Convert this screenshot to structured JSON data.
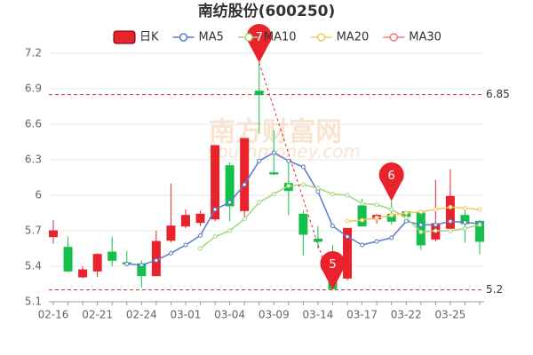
{
  "chart_data": {
    "type": "candlestick",
    "title": "南纺股份(600250)",
    "watermark": "南方财富网",
    "watermark_sub": "southmoney.com",
    "categories": [
      "02-16",
      null,
      null,
      "02-21",
      null,
      null,
      "02-24",
      null,
      null,
      "03-01",
      null,
      null,
      "03-04",
      null,
      null,
      "03-09",
      null,
      null,
      "03-14",
      null,
      null,
      "03-17",
      null,
      null,
      "03-22",
      null,
      null,
      "03-25",
      null,
      null
    ],
    "series": [
      {
        "name": "日K",
        "color": "#e8232b",
        "up_color": "#e8232b",
        "down_color": "#14c04b",
        "open": [
          5.65,
          5.56,
          5.31,
          5.36,
          5.52,
          5.43,
          5.42,
          5.32,
          5.62,
          5.74,
          5.77,
          5.8,
          6.25,
          5.87,
          6.88,
          6.19,
          6.1,
          5.84,
          5.63,
          5.32,
          5.3,
          5.91,
          5.8,
          5.84,
          5.86,
          5.85,
          5.63,
          5.72,
          5.83,
          5.78
        ],
        "close": [
          5.7,
          5.36,
          5.37,
          5.5,
          5.45,
          5.42,
          5.32,
          5.61,
          5.74,
          5.83,
          5.84,
          6.42,
          5.91,
          6.48,
          6.85,
          6.18,
          6.04,
          5.67,
          5.61,
          5.21,
          5.72,
          5.74,
          5.83,
          5.78,
          5.82,
          5.58,
          5.76,
          5.99,
          5.76,
          5.61
        ],
        "high": [
          5.79,
          5.65,
          5.4,
          5.51,
          5.65,
          5.53,
          5.45,
          5.7,
          6.1,
          5.88,
          5.87,
          6.42,
          6.28,
          6.48,
          7.12,
          6.55,
          6.3,
          5.87,
          5.74,
          5.58,
          5.72,
          5.97,
          5.84,
          5.95,
          5.87,
          5.86,
          6.13,
          6.22,
          5.89,
          5.79
        ],
        "low": [
          5.59,
          5.35,
          5.3,
          5.31,
          5.4,
          5.4,
          5.22,
          5.32,
          5.6,
          5.72,
          5.74,
          5.78,
          5.78,
          5.8,
          6.52,
          6.17,
          5.83,
          5.49,
          5.55,
          5.2,
          5.28,
          5.74,
          5.76,
          5.75,
          5.77,
          5.54,
          5.61,
          5.7,
          5.6,
          5.5
        ]
      },
      {
        "name": "MA5",
        "color": "#5b7bc9",
        "values": [
          null,
          null,
          null,
          null,
          null,
          5.42,
          5.41,
          5.45,
          5.51,
          5.58,
          5.66,
          5.88,
          5.94,
          6.09,
          6.29,
          6.36,
          6.29,
          6.24,
          6.03,
          5.74,
          5.65,
          5.58,
          5.61,
          5.64,
          5.78,
          5.75,
          5.75,
          5.78,
          5.77,
          5.76
        ]
      },
      {
        "name": "MA10",
        "color": "#a3d67f",
        "values": [
          null,
          null,
          null,
          null,
          null,
          null,
          null,
          null,
          null,
          null,
          5.55,
          5.65,
          5.7,
          5.8,
          5.94,
          6.01,
          6.08,
          6.09,
          6.06,
          6.01,
          6.0,
          5.93,
          5.92,
          5.88,
          5.81,
          5.69,
          5.7,
          5.7,
          5.72,
          5.75
        ]
      },
      {
        "name": "MA20",
        "color": "#f5c55a",
        "values": [
          null,
          null,
          null,
          null,
          null,
          null,
          null,
          null,
          null,
          null,
          null,
          null,
          null,
          null,
          null,
          null,
          null,
          null,
          null,
          null,
          5.78,
          5.79,
          5.81,
          5.83,
          5.85,
          5.86,
          5.88,
          5.9,
          5.89,
          5.88
        ]
      },
      {
        "name": "MA30",
        "color": "#f07a7a",
        "values": [
          null,
          null,
          null,
          null,
          null,
          null,
          null,
          null,
          null,
          null,
          null,
          null,
          null,
          null,
          null,
          null,
          null,
          null,
          null,
          null,
          null,
          null,
          null,
          null,
          null,
          null,
          null,
          null,
          null,
          null
        ]
      }
    ],
    "ylim": [
      5.1,
      7.2
    ],
    "yticks": [
      5.1,
      5.4,
      5.7,
      6,
      6.3,
      6.6,
      6.9,
      7.2
    ],
    "grid": true,
    "hlines": [
      6.85,
      5.2
    ],
    "markers": [
      {
        "label": "7",
        "value": 7.12
      },
      {
        "label": "5",
        "value": 5.2
      },
      {
        "label": "6",
        "value": 5.95
      }
    ]
  }
}
